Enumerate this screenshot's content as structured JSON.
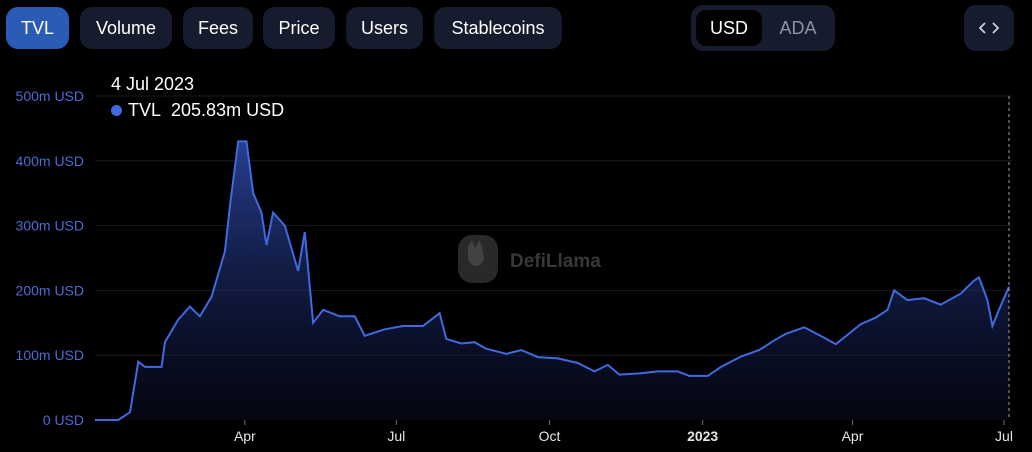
{
  "tabs": [
    {
      "label": "TVL",
      "active": true
    },
    {
      "label": "Volume",
      "active": false
    },
    {
      "label": "Fees",
      "active": false
    },
    {
      "label": "Price",
      "active": false
    },
    {
      "label": "Users",
      "active": false
    },
    {
      "label": "Stablecoins",
      "active": false
    }
  ],
  "currency": {
    "options": [
      "USD",
      "ADA"
    ],
    "selected": "USD"
  },
  "embed_icon": "code-brackets-icon",
  "watermark": {
    "text": "DefiLlama",
    "icon": "llama-logo-icon"
  },
  "tooltip": {
    "date": "4 Jul 2023",
    "series": "TVL",
    "value": "205.83m USD",
    "color": "#4169e1"
  },
  "colors": {
    "line": "#4169e1",
    "accent_tab": "#2a5bb5",
    "tab_bg": "#161c2d"
  },
  "chart_data": {
    "type": "area",
    "title": "",
    "xlabel": "",
    "ylabel": "",
    "ylim": [
      0,
      500
    ],
    "y_unit": "m USD",
    "y_ticks": [
      "0 USD",
      "100m USD",
      "200m USD",
      "300m USD",
      "400m USD",
      "500m USD"
    ],
    "x_ticks": [
      {
        "label": "Apr",
        "date": "2022-04-01",
        "bold": false
      },
      {
        "label": "Jul",
        "date": "2022-07-01",
        "bold": false
      },
      {
        "label": "Oct",
        "date": "2022-10-01",
        "bold": false
      },
      {
        "label": "2023",
        "date": "2023-01-01",
        "bold": true
      },
      {
        "label": "Apr",
        "date": "2023-04-01",
        "bold": false
      },
      {
        "label": "Jul",
        "date": "2023-07-01",
        "bold": false
      }
    ],
    "grid": true,
    "series": [
      {
        "name": "TVL",
        "points": [
          [
            "2022-01-01",
            0
          ],
          [
            "2022-01-15",
            0
          ],
          [
            "2022-01-22",
            12
          ],
          [
            "2022-01-27",
            90
          ],
          [
            "2022-01-31",
            82
          ],
          [
            "2022-02-10",
            82
          ],
          [
            "2022-02-12",
            120
          ],
          [
            "2022-02-20",
            155
          ],
          [
            "2022-02-27",
            175
          ],
          [
            "2022-03-05",
            160
          ],
          [
            "2022-03-12",
            190
          ],
          [
            "2022-03-20",
            260
          ],
          [
            "2022-03-23",
            330
          ],
          [
            "2022-03-28",
            430
          ],
          [
            "2022-04-02",
            430
          ],
          [
            "2022-04-06",
            350
          ],
          [
            "2022-04-11",
            320
          ],
          [
            "2022-04-14",
            270
          ],
          [
            "2022-04-18",
            320
          ],
          [
            "2022-04-25",
            300
          ],
          [
            "2022-05-03",
            230
          ],
          [
            "2022-05-07",
            290
          ],
          [
            "2022-05-12",
            150
          ],
          [
            "2022-05-18",
            170
          ],
          [
            "2022-05-28",
            160
          ],
          [
            "2022-06-06",
            160
          ],
          [
            "2022-06-12",
            130
          ],
          [
            "2022-06-24",
            140
          ],
          [
            "2022-07-05",
            145
          ],
          [
            "2022-07-17",
            145
          ],
          [
            "2022-07-27",
            165
          ],
          [
            "2022-07-31",
            125
          ],
          [
            "2022-08-09",
            118
          ],
          [
            "2022-08-17",
            120
          ],
          [
            "2022-08-24",
            110
          ],
          [
            "2022-09-05",
            102
          ],
          [
            "2022-09-14",
            108
          ],
          [
            "2022-09-24",
            97
          ],
          [
            "2022-10-06",
            95
          ],
          [
            "2022-10-18",
            88
          ],
          [
            "2022-10-28",
            75
          ],
          [
            "2022-11-05",
            85
          ],
          [
            "2022-11-12",
            70
          ],
          [
            "2022-11-25",
            72
          ],
          [
            "2022-12-05",
            75
          ],
          [
            "2022-12-17",
            75
          ],
          [
            "2022-12-24",
            68
          ],
          [
            "2023-01-04",
            68
          ],
          [
            "2023-01-12",
            82
          ],
          [
            "2023-01-24",
            98
          ],
          [
            "2023-02-04",
            108
          ],
          [
            "2023-02-13",
            123
          ],
          [
            "2023-02-20",
            133
          ],
          [
            "2023-03-03",
            143
          ],
          [
            "2023-03-15",
            127
          ],
          [
            "2023-03-22",
            117
          ],
          [
            "2023-04-06",
            148
          ],
          [
            "2023-04-15",
            158
          ],
          [
            "2023-04-22",
            170
          ],
          [
            "2023-04-26",
            200
          ],
          [
            "2023-05-04",
            185
          ],
          [
            "2023-05-14",
            188
          ],
          [
            "2023-05-24",
            178
          ],
          [
            "2023-06-05",
            195
          ],
          [
            "2023-06-13",
            215
          ],
          [
            "2023-06-16",
            220
          ],
          [
            "2023-06-21",
            185
          ],
          [
            "2023-06-24",
            145
          ],
          [
            "2023-06-28",
            170
          ],
          [
            "2023-07-04",
            205.83
          ]
        ]
      }
    ]
  }
}
